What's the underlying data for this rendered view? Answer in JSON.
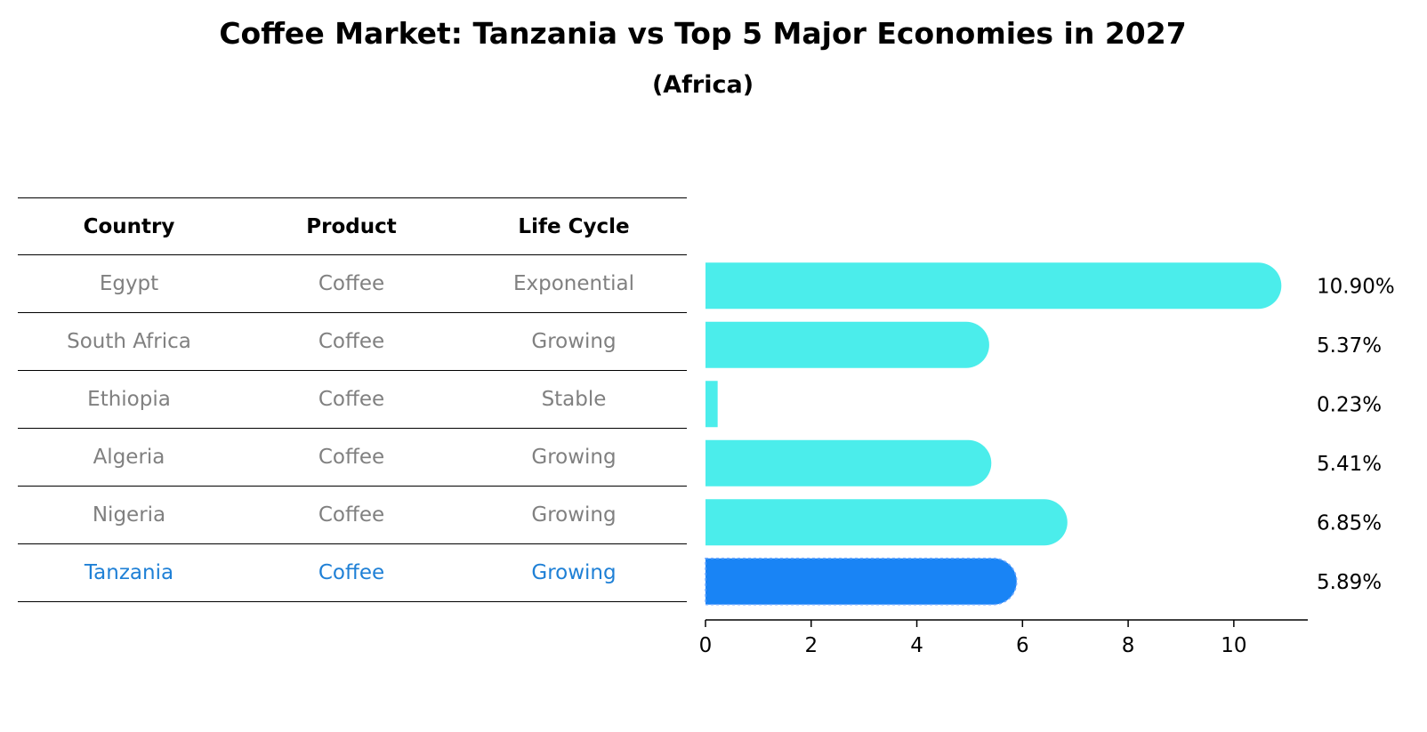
{
  "title": "Coffee Market: Tanzania vs Top 5 Major Economies in 2027",
  "subtitle": "(Africa)",
  "table": {
    "headers": [
      "Country",
      "Product",
      "Life Cycle"
    ],
    "rows": [
      {
        "country": "Egypt",
        "product": "Coffee",
        "life_cycle": "Exponential"
      },
      {
        "country": "South Africa",
        "product": "Coffee",
        "life_cycle": "Growing"
      },
      {
        "country": "Ethiopia",
        "product": "Coffee",
        "life_cycle": "Stable"
      },
      {
        "country": "Algeria",
        "product": "Coffee",
        "life_cycle": "Growing"
      },
      {
        "country": "Nigeria",
        "product": "Coffee",
        "life_cycle": "Growing"
      },
      {
        "country": "Tanzania",
        "product": "Coffee",
        "life_cycle": "Growing"
      }
    ]
  },
  "colors": {
    "bar": "#4BEDEB",
    "highlight_bar": "#1984F5",
    "highlight_text": "#1F80D6",
    "muted_text": "#808080"
  },
  "chart_data": {
    "type": "bar",
    "orientation": "horizontal",
    "categories": [
      "Egypt",
      "South Africa",
      "Ethiopia",
      "Algeria",
      "Nigeria",
      "Tanzania"
    ],
    "values": [
      10.9,
      5.37,
      0.23,
      5.41,
      6.85,
      5.89
    ],
    "value_labels": [
      "10.90%",
      "5.37%",
      "0.23%",
      "5.41%",
      "6.85%",
      "5.89%"
    ],
    "highlight": "Tanzania",
    "xlim": [
      0,
      11.4
    ],
    "xticks": [
      0,
      2,
      4,
      6,
      8,
      10
    ],
    "xlabel": "",
    "ylabel": "",
    "grid": false
  }
}
